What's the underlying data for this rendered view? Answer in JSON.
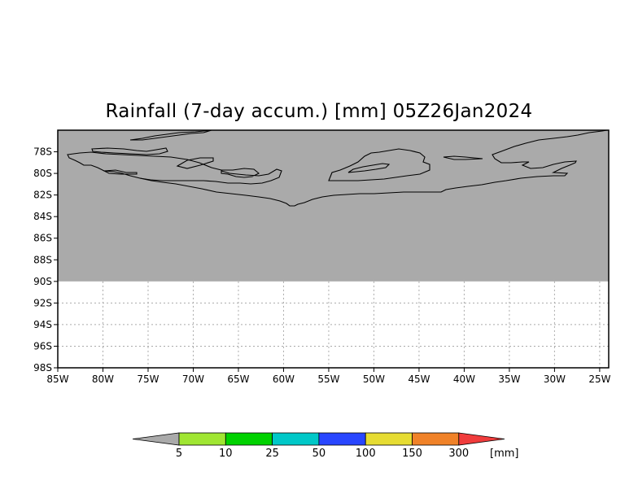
{
  "title": "Rainfall (7-day accum.) [mm] 05Z26Jan2024",
  "map": {
    "lon_range": [
      -85,
      -24
    ],
    "lat_range": [
      -98,
      -76
    ],
    "land_edge_lat": -90,
    "colors": {
      "land": "#aaaaaa",
      "ocean": "#ffffff",
      "coast": "#000000",
      "grid": "#aaaaaa"
    }
  },
  "axes": {
    "lon_ticks": [
      {
        "value": -85,
        "label": "85W"
      },
      {
        "value": -80,
        "label": "80W"
      },
      {
        "value": -75,
        "label": "75W"
      },
      {
        "value": -70,
        "label": "70W"
      },
      {
        "value": -65,
        "label": "65W"
      },
      {
        "value": -60,
        "label": "60W"
      },
      {
        "value": -55,
        "label": "55W"
      },
      {
        "value": -50,
        "label": "50W"
      },
      {
        "value": -45,
        "label": "45W"
      },
      {
        "value": -40,
        "label": "40W"
      },
      {
        "value": -35,
        "label": "35W"
      },
      {
        "value": -30,
        "label": "30W"
      },
      {
        "value": -25,
        "label": "25W"
      }
    ],
    "lat_ticks": [
      {
        "value": -78,
        "label": "78S"
      },
      {
        "value": -80,
        "label": "80S"
      },
      {
        "value": -82,
        "label": "82S"
      },
      {
        "value": -84,
        "label": "84S"
      },
      {
        "value": -86,
        "label": "86S"
      },
      {
        "value": -88,
        "label": "88S"
      },
      {
        "value": -90,
        "label": "90S"
      },
      {
        "value": -92,
        "label": "92S"
      },
      {
        "value": -94,
        "label": "94S"
      },
      {
        "value": -96,
        "label": "96S"
      },
      {
        "value": -98,
        "label": "98S"
      }
    ]
  },
  "colorbar": {
    "under_color": "#aaaaaa",
    "over_color": "#f03c3c",
    "bins": [
      {
        "color": "#a0e632"
      },
      {
        "color": "#00d200"
      },
      {
        "color": "#00c8c8"
      },
      {
        "color": "#2846ff"
      },
      {
        "color": "#e6dc32"
      },
      {
        "color": "#f08228"
      }
    ],
    "labels": [
      "5",
      "10",
      "25",
      "50",
      "100",
      "150",
      "300"
    ],
    "unit": "[mm]"
  }
}
